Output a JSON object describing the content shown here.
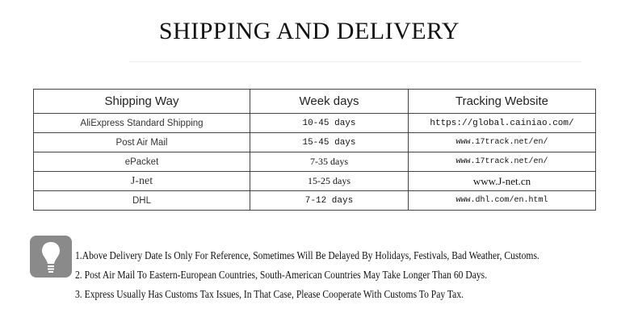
{
  "title": "SHIPPING AND DELIVERY",
  "table": {
    "headers": [
      "Shipping Way",
      "Week days",
      "Tracking Website"
    ],
    "rows": [
      [
        "AliExpress Standard Shipping",
        "10-45 days",
        "https://global.cainiao.com/"
      ],
      [
        "Post Air Mail",
        "15-45 days",
        "www.17track.net/en/"
      ],
      [
        "ePacket",
        "7-35 days",
        "www.17track.net/en/"
      ],
      [
        "J-net",
        "15-25 days",
        "www.J-net.cn"
      ],
      [
        "DHL",
        "7-12 days",
        "www.dhl.com/en.html"
      ]
    ]
  },
  "notes_icon": "lightbulb-icon",
  "notes": [
    "1.Above Delivery Date Is Only For Reference, Sometimes Will Be Delayed By Holidays, Festivals, Bad Weather, Customs.",
    "2. Post Air Mail To Eastern-European Countries, South-American Countries May Take Longer Than 60 Days.",
    "3. Express Usually Has Customs Tax Issues, In That Case, Please Cooperate With Customs To Pay Tax."
  ]
}
